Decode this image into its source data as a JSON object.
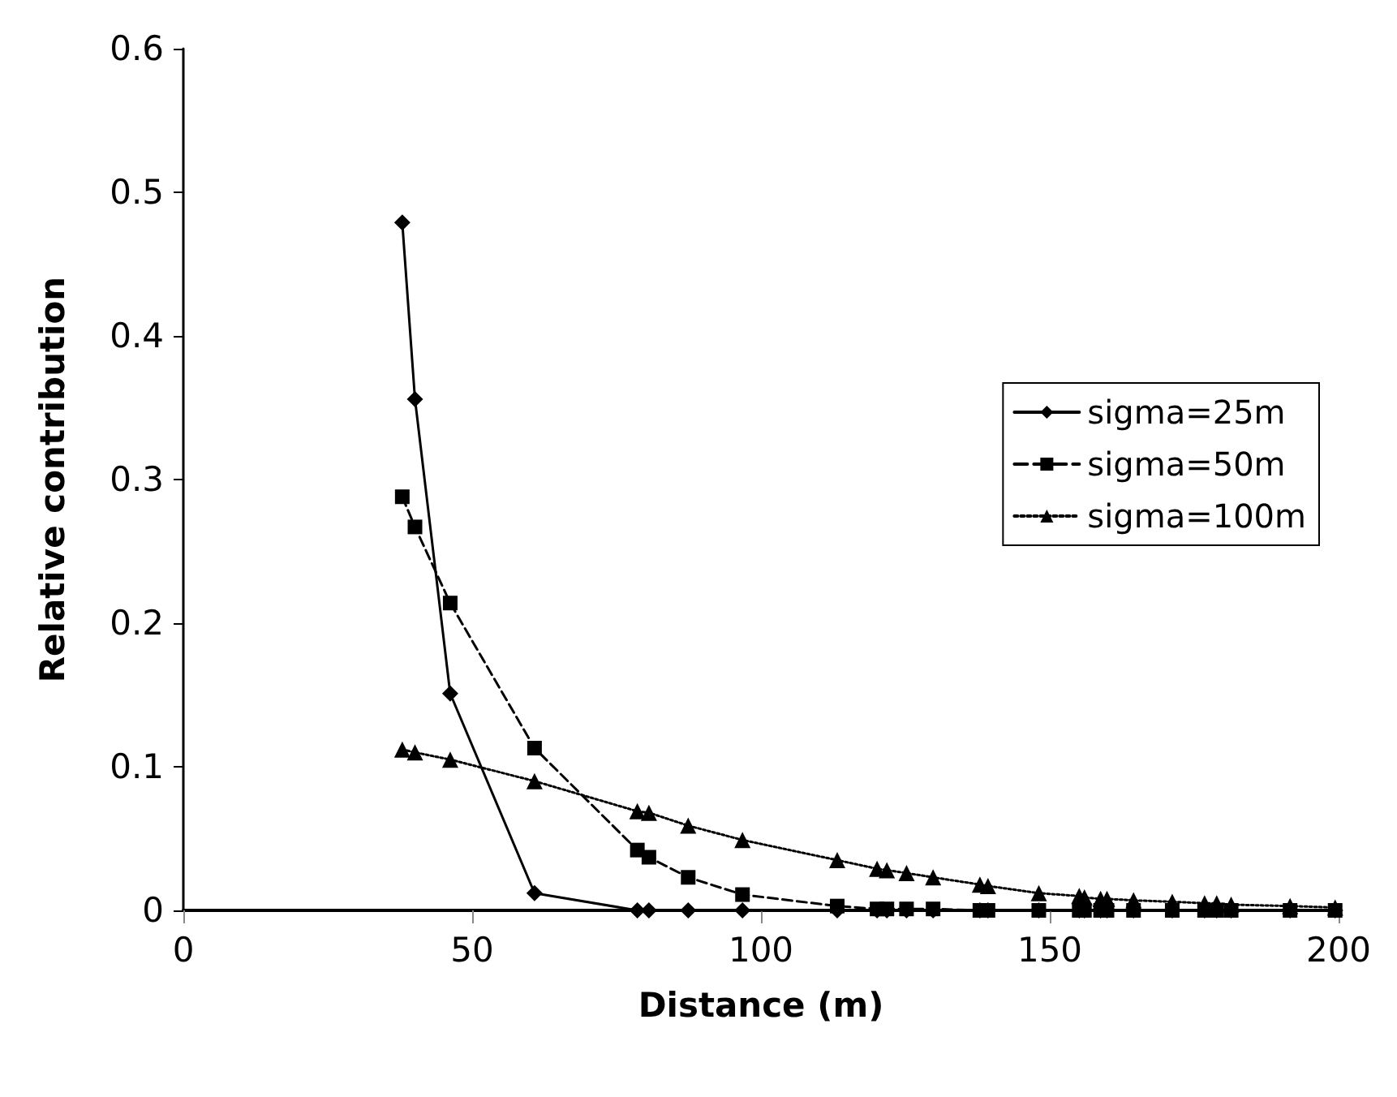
{
  "chart_data": {
    "type": "line",
    "xlabel": "Distance (m)",
    "ylabel": "Relative contribution",
    "xlim": [
      0,
      200
    ],
    "xticks": [
      0,
      50,
      100,
      150,
      200
    ],
    "ylim": [
      0,
      0.6
    ],
    "yticks": [
      0,
      0.1,
      0.2,
      0.3,
      0.4,
      0.5,
      0.6
    ],
    "grid": false,
    "legend": "right",
    "x": [
      37.9,
      40.1,
      46.2,
      60.8,
      78.6,
      80.6,
      87.4,
      96.8,
      113.2,
      120.1,
      121.8,
      125.2,
      129.8,
      137.9,
      139.3,
      148.1,
      155.1,
      156.0,
      158.8,
      159.9,
      164.5,
      171.2,
      176.8,
      178.9,
      181.4,
      191.6,
      199.4
    ],
    "series": [
      {
        "name": "sigma=25m",
        "color": "#000000",
        "marker": "diamond",
        "line_style": "solid",
        "values": [
          0.479,
          0.356,
          0.151,
          0.012,
          0,
          0,
          0,
          0,
          0,
          0,
          0,
          0,
          0,
          0,
          0,
          0,
          0,
          0,
          0,
          0,
          0,
          0,
          0,
          0,
          0,
          0,
          0
        ]
      },
      {
        "name": "sigma=50m",
        "color": "#000000",
        "marker": "square",
        "line_style": "dashed",
        "values": [
          0.288,
          0.267,
          0.214,
          0.113,
          0.042,
          0.037,
          0.023,
          0.011,
          0.003,
          0.001,
          0.001,
          0.001,
          0.001,
          0,
          0,
          0,
          0,
          0,
          0,
          0,
          0,
          0,
          0,
          0,
          0,
          0,
          0
        ]
      },
      {
        "name": "sigma=100m",
        "color": "#000000",
        "marker": "triangle",
        "line_style": "dotted",
        "values": [
          0.112,
          0.11,
          0.105,
          0.09,
          0.069,
          0.068,
          0.059,
          0.049,
          0.035,
          0.029,
          0.028,
          0.026,
          0.023,
          0.018,
          0.017,
          0.012,
          0.01,
          0.009,
          0.008,
          0.008,
          0.007,
          0.006,
          0.005,
          0.005,
          0.004,
          0.003,
          0.002
        ]
      }
    ]
  }
}
